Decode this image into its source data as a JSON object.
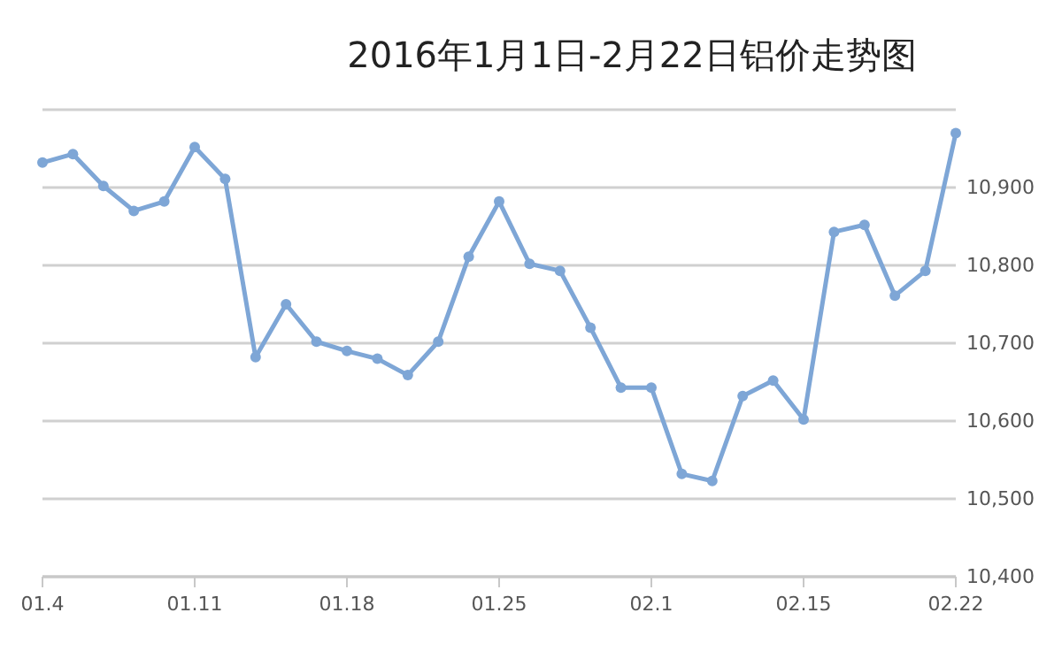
{
  "chart_data": {
    "type": "line",
    "title": "2016年1月1日-2月22日铝价走势图",
    "categories": [
      "01.4",
      null,
      null,
      null,
      null,
      "01.11",
      null,
      null,
      null,
      null,
      "01.18",
      null,
      null,
      null,
      null,
      "01.25",
      null,
      null,
      null,
      null,
      "02.1",
      null,
      null,
      null,
      null,
      "02.15",
      null,
      null,
      null,
      null,
      "02.22"
    ],
    "series": [
      {
        "color": "#7ea6d6",
        "values": [
          10932,
          10943,
          10902,
          10870,
          10882,
          10952,
          10911,
          10682,
          10750,
          10702,
          10690,
          10680,
          10659,
          10702,
          10811,
          10882,
          10802,
          10793,
          10720,
          10643,
          10643,
          10532,
          10523,
          10632,
          10652,
          10602,
          10843,
          10852,
          10761,
          10793,
          10970
        ]
      }
    ],
    "ylim": [
      10400,
      11000
    ],
    "yticks": [
      {
        "value": 10400,
        "label": "10,400"
      },
      {
        "value": 10500,
        "label": "10,500"
      },
      {
        "value": 10600,
        "label": "10,600"
      },
      {
        "value": 10700,
        "label": "10,700"
      },
      {
        "value": 10800,
        "label": "10,800"
      },
      {
        "value": 10900,
        "label": "10,900"
      },
      {
        "value": 11000,
        "label": null
      }
    ],
    "grid": "y",
    "marker": "circle",
    "line_style": "solid"
  }
}
